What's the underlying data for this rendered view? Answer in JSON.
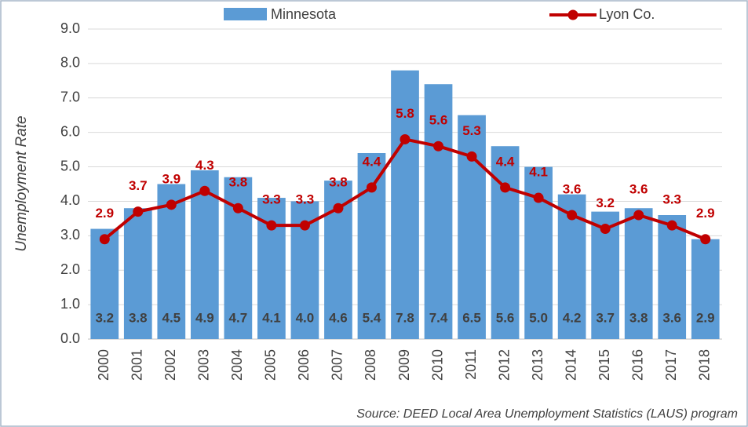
{
  "chart_data": {
    "type": "bar",
    "y_label": "Unemployment Rate",
    "source": "Source: DEED Local Area Unemployment Statistics (LAUS) program",
    "categories": [
      "2000",
      "2001",
      "2002",
      "2003",
      "2004",
      "2005",
      "2006",
      "2007",
      "2008",
      "2009",
      "2010",
      "2011",
      "2012",
      "2013",
      "2014",
      "2015",
      "2016",
      "2017",
      "2018"
    ],
    "series": [
      {
        "name": "Minnesota",
        "type": "bar",
        "color": "#5b9bd5",
        "values": [
          3.2,
          3.8,
          4.5,
          4.9,
          4.7,
          4.1,
          4.0,
          4.6,
          5.4,
          7.8,
          7.4,
          6.5,
          5.6,
          5.0,
          4.2,
          3.7,
          3.8,
          3.6,
          2.9
        ],
        "value_labels": [
          "3.2",
          "3.8",
          "4.5",
          "4.9",
          "4.7",
          "4.1",
          "4.0",
          "4.6",
          "5.4",
          "7.8",
          "7.4",
          "6.5",
          "5.6",
          "5.0",
          "4.2",
          "3.7",
          "3.8",
          "3.6",
          "2.9"
        ]
      },
      {
        "name": "Lyon Co.",
        "type": "line",
        "color": "#c00000",
        "values": [
          2.9,
          3.7,
          3.9,
          4.3,
          3.8,
          3.3,
          3.3,
          3.8,
          4.4,
          5.8,
          5.6,
          5.3,
          4.4,
          4.1,
          3.6,
          3.2,
          3.6,
          3.3,
          2.9
        ]
      }
    ],
    "ylim": [
      0,
      9
    ],
    "yticks": [
      {
        "value": 0,
        "label": "0.0"
      },
      {
        "value": 1,
        "label": "1.0"
      },
      {
        "value": 2,
        "label": "2.0"
      },
      {
        "value": 3,
        "label": "3.0"
      },
      {
        "value": 4,
        "label": "4.0"
      },
      {
        "value": 5,
        "label": "5.0"
      },
      {
        "value": 6,
        "label": "6.0"
      },
      {
        "value": 7,
        "label": "7.0"
      },
      {
        "value": 8,
        "label": "8.0"
      },
      {
        "value": 9,
        "label": "9.0"
      }
    ],
    "grid": true,
    "legend": "top"
  }
}
